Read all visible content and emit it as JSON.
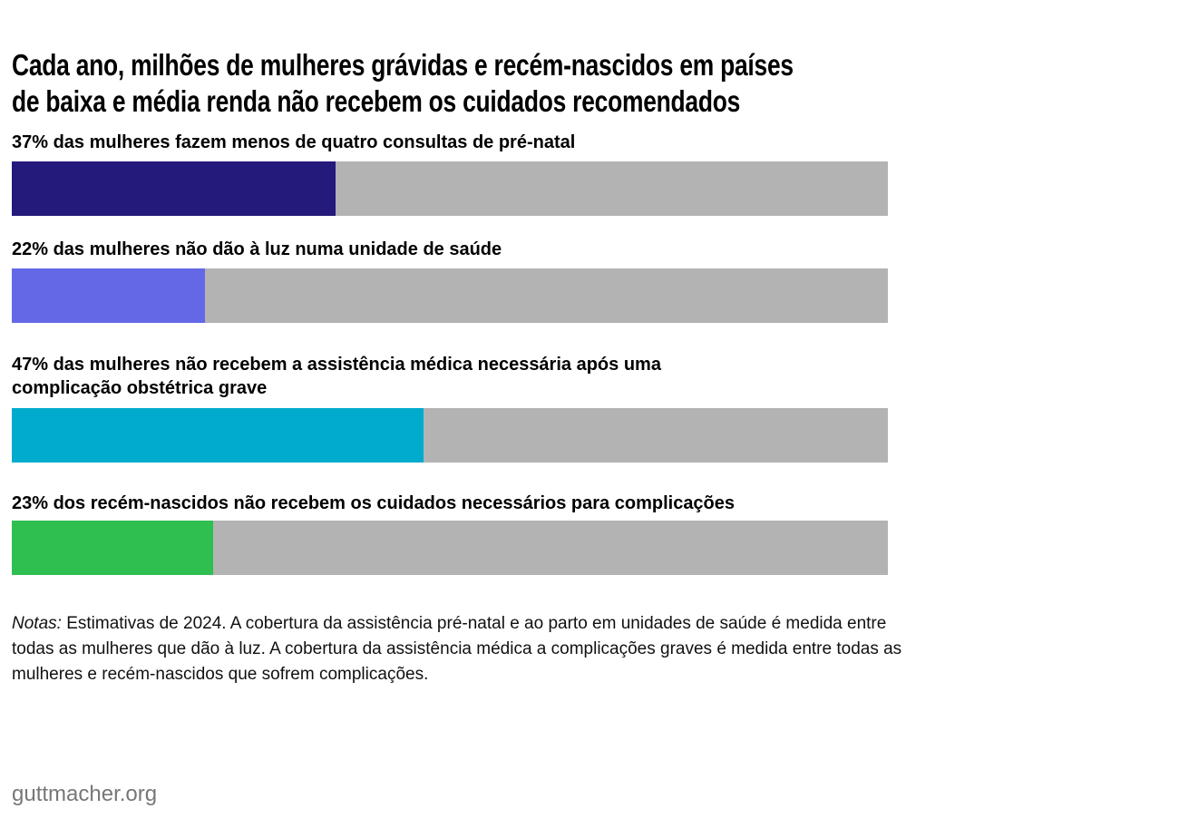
{
  "chart_data": {
    "type": "bar",
    "orientation": "horizontal",
    "title_lines": [
      "Cada ano, milhões de mulheres grávidas e recém-nascidos em países",
      "de baixa e média renda não recebem os cuidados recomendados"
    ],
    "xlim": [
      0,
      100
    ],
    "unit": "%",
    "grid": false,
    "track_color": "#b3b3b3",
    "items": [
      {
        "label_lines": [
          "37% das mulheres fazem menos de quatro consultas de pré-natal"
        ],
        "value": 37,
        "color": "#241a7c"
      },
      {
        "label_lines": [
          "22% das mulheres não dão à luz numa unidade de saúde"
        ],
        "value": 22,
        "color": "#6468e6"
      },
      {
        "label_lines": [
          "47% das mulheres não recebem a assistência médica necessária após uma",
          "complicação obstétrica grave"
        ],
        "value": 47,
        "color": "#00abcd"
      },
      {
        "label_lines": [
          "23% dos recém-nascidos não recebem os cuidados necessários para complicações"
        ],
        "value": 23,
        "color": "#2ebf50"
      }
    ]
  },
  "notes": {
    "prefix": "Notas:",
    "text": " Estimativas de 2024. A cobertura da assistência pré-natal e ao parto em unidades de saúde é medida entre todas as mulheres que dão à luz. A cobertura da assistência médica a complicações graves é medida entre todas as mulheres e recém-nascidos que sofrem complicações."
  },
  "source": "guttmacher.org"
}
